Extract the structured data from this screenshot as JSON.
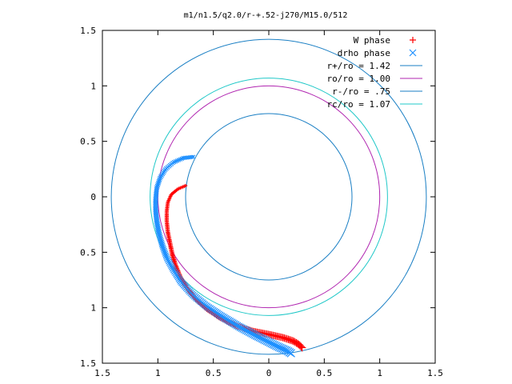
{
  "chart_data": {
    "type": "scatter",
    "title": "m1/n1.5/q2.0/r-+.52-j270/M15.0/512",
    "xlabel": "",
    "ylabel": "",
    "xlim": [
      -1.5,
      1.5
    ],
    "ylim": [
      -1.5,
      1.5
    ],
    "x_ticks": [
      -1.5,
      -1,
      -0.5,
      0,
      0.5,
      1,
      1.5
    ],
    "y_ticks": [
      -1.5,
      -1,
      -0.5,
      0,
      0.5,
      1,
      1.5
    ],
    "x_tick_labels": [
      "1.5",
      "1",
      "0.5",
      "0",
      "0.5",
      "1",
      "1.5"
    ],
    "y_tick_labels": [
      "1.5",
      "1",
      "0.5",
      "0",
      "0.5",
      "1",
      "1.5"
    ],
    "grid": false,
    "legend_position": "top-right",
    "series": [
      {
        "name": "W phase",
        "marker": "plus",
        "color": "#ff0000",
        "points": [
          [
            -0.75,
            0.1
          ],
          [
            -0.82,
            0.07
          ],
          [
            -0.88,
            0.02
          ],
          [
            -0.91,
            -0.05
          ],
          [
            -0.92,
            -0.13
          ],
          [
            -0.92,
            -0.22
          ],
          [
            -0.91,
            -0.32
          ],
          [
            -0.89,
            -0.42
          ],
          [
            -0.87,
            -0.52
          ],
          [
            -0.84,
            -0.62
          ],
          [
            -0.8,
            -0.72
          ],
          [
            -0.74,
            -0.82
          ],
          [
            -0.66,
            -0.92
          ],
          [
            -0.56,
            -1.01
          ],
          [
            -0.44,
            -1.09
          ],
          [
            -0.3,
            -1.16
          ],
          [
            -0.15,
            -1.21
          ],
          [
            0.0,
            -1.24
          ],
          [
            0.13,
            -1.27
          ],
          [
            0.22,
            -1.3
          ],
          [
            0.27,
            -1.33
          ],
          [
            0.3,
            -1.36
          ]
        ]
      },
      {
        "name": "drho phase",
        "marker": "cross",
        "color": "#1e90ff",
        "points": [
          [
            -0.68,
            0.36
          ],
          [
            -0.77,
            0.35
          ],
          [
            -0.86,
            0.31
          ],
          [
            -0.93,
            0.25
          ],
          [
            -0.98,
            0.17
          ],
          [
            -1.01,
            0.08
          ],
          [
            -1.02,
            -0.02
          ],
          [
            -1.02,
            -0.12
          ],
          [
            -1.01,
            -0.22
          ],
          [
            -0.99,
            -0.33
          ],
          [
            -0.96,
            -0.44
          ],
          [
            -0.92,
            -0.55
          ],
          [
            -0.86,
            -0.66
          ],
          [
            -0.79,
            -0.77
          ],
          [
            -0.69,
            -0.88
          ],
          [
            -0.57,
            -0.98
          ],
          [
            -0.42,
            -1.08
          ],
          [
            -0.27,
            -1.17
          ],
          [
            -0.12,
            -1.25
          ],
          [
            0.0,
            -1.31
          ],
          [
            0.1,
            -1.36
          ],
          [
            0.17,
            -1.39
          ],
          [
            0.2,
            -1.41
          ]
        ]
      },
      {
        "name": "r+/ro = 1.42",
        "type": "circle",
        "radius": 1.42,
        "color": "#1a7fc4"
      },
      {
        "name": "ro/ro = 1.00",
        "type": "circle",
        "radius": 1.0,
        "color": "#b025b0"
      },
      {
        "name": "r-/ro = .75",
        "type": "circle",
        "radius": 0.75,
        "color": "#1a7fc4"
      },
      {
        "name": "rc/ro = 1.07",
        "type": "circle",
        "radius": 1.07,
        "color": "#20c8c8"
      }
    ]
  }
}
